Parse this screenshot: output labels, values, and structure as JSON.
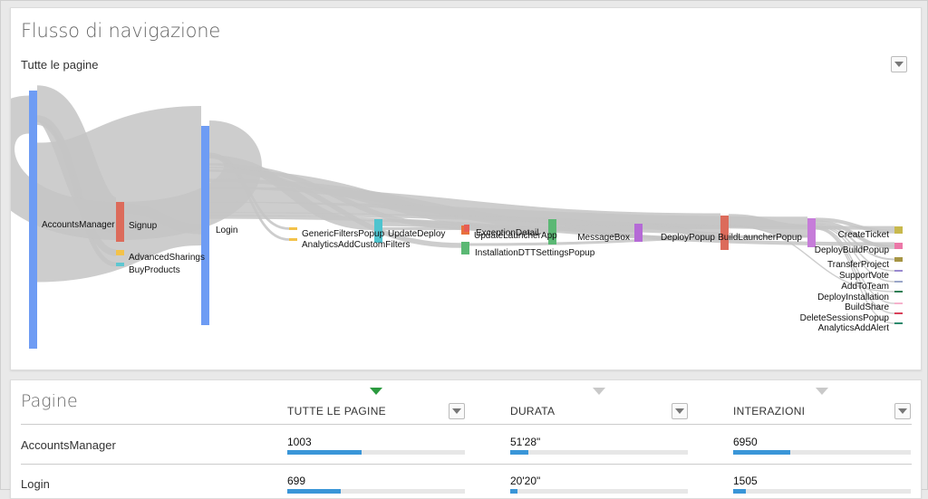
{
  "flow": {
    "title": "Flusso di navigazione",
    "filter_label": "Tutte le pagine",
    "nodes": [
      {
        "id": "AccountsManager",
        "label": "AccountsManager",
        "color": "#6e9cf4"
      },
      {
        "id": "Signup",
        "label": "Signup",
        "color": "#dc6b5b"
      },
      {
        "id": "AdvancedSharings",
        "label": "AdvancedSharings",
        "color": "#f3c24a"
      },
      {
        "id": "BuyProducts",
        "label": "BuyProducts",
        "color": "#5ec7d1"
      },
      {
        "id": "Login",
        "label": "Login",
        "color": "#6e9cf4"
      },
      {
        "id": "GenericFiltersPopup",
        "label": "GenericFiltersPopup",
        "color": "#f3c24a"
      },
      {
        "id": "AnalyticsAddCustomFilters",
        "label": "AnalyticsAddCustomFilters",
        "color": "#f3c24a"
      },
      {
        "id": "UpdateDeploy",
        "label": "UpdateDeploy",
        "color": "#4ec4cf"
      },
      {
        "id": "UpdateLauncherApp",
        "label": "UpdateLauncherApp",
        "color": "#e8713d"
      },
      {
        "id": "ExceptionDetail",
        "label": "ExceptionDetail",
        "color": "#e65d55"
      },
      {
        "id": "InstallationDTTSettingsPopup",
        "label": "InstallationDTTSettingsPopup",
        "color": "#5bb874"
      },
      {
        "id": "MessageBoxA",
        "label": "",
        "color": "#5bb874"
      },
      {
        "id": "MessageBox",
        "label": "MessageBox",
        "color": "#b56ad6"
      },
      {
        "id": "DeployPopup",
        "label": "DeployPopup",
        "color": "#dc6b5b"
      },
      {
        "id": "BuildLauncherPopup",
        "label": "BuildLauncherPopup",
        "color": "#c67cd9"
      },
      {
        "id": "CreateTicket",
        "label": "CreateTicket",
        "color": "#c8b94d"
      },
      {
        "id": "DeployBuildPopup",
        "label": "DeployBuildPopup",
        "color": "#ec78a8"
      },
      {
        "id": "TransferProject",
        "label": "TransferProject",
        "color": "#a69544"
      },
      {
        "id": "SupportVote",
        "label": "SupportVote",
        "color": "#9a8ad0"
      },
      {
        "id": "AddToTeam",
        "label": "AddToTeam",
        "color": "#9aa6c8"
      },
      {
        "id": "DeployInstallation",
        "label": "DeployInstallation",
        "color": "#2d7f55"
      },
      {
        "id": "BuildShare",
        "label": "BuildShare",
        "color": "#f6b2cc"
      },
      {
        "id": "DeleteSessionsPopup",
        "label": "DeleteSessionsPopup",
        "color": "#d9405a"
      },
      {
        "id": "AnalyticsAddAlert",
        "label": "AnalyticsAddAlert",
        "color": "#2a8a6d"
      }
    ],
    "links": [
      {
        "from": "AccountsManager",
        "to": "Signup",
        "value": 16
      },
      {
        "from": "AccountsManager",
        "to": "AdvancedSharings",
        "value": 3
      },
      {
        "from": "AccountsManager",
        "to": "BuyProducts",
        "value": 2
      },
      {
        "from": "AccountsManager",
        "to": "Login",
        "value": 110
      },
      {
        "from": "Signup",
        "to": "Login",
        "value": 8
      },
      {
        "from": "Login",
        "to": "AccountsManager",
        "value": 30
      },
      {
        "from": "Login",
        "to": "GenericFiltersPopup",
        "value": 2
      },
      {
        "from": "Login",
        "to": "AnalyticsAddCustomFilters",
        "value": 2
      },
      {
        "from": "Login",
        "to": "UpdateDeploy",
        "value": 8
      },
      {
        "from": "Login",
        "to": "ExceptionDetail",
        "value": 4
      },
      {
        "from": "Login",
        "to": "InstallationDTTSettingsPopup",
        "value": 4
      },
      {
        "from": "Login",
        "to": "MessageBoxA",
        "value": 10
      },
      {
        "from": "Login",
        "to": "MessageBox",
        "value": 8
      },
      {
        "from": "Login",
        "to": "DeployPopup",
        "value": 16
      },
      {
        "from": "Login",
        "to": "BuildLauncherPopup",
        "value": 12
      },
      {
        "from": "Login",
        "to": "CreateTicket",
        "value": 3
      },
      {
        "from": "Login",
        "to": "DeployBuildPopup",
        "value": 3
      },
      {
        "from": "UpdateDeploy",
        "to": "MessageBoxA",
        "value": 5
      },
      {
        "from": "UpdateDeploy",
        "to": "DeployPopup",
        "value": 3
      },
      {
        "from": "MessageBoxA",
        "to": "MessageBox",
        "value": 6
      },
      {
        "from": "MessageBoxA",
        "to": "DeployPopup",
        "value": 6
      },
      {
        "from": "MessageBox",
        "to": "DeployPopup",
        "value": 6
      },
      {
        "from": "DeployPopup",
        "to": "BuildLauncherPopup",
        "value": 14
      },
      {
        "from": "DeployPopup",
        "to": "DeployInstallation",
        "value": 1
      },
      {
        "from": "BuildLauncherPopup",
        "to": "CreateTicket",
        "value": 4
      },
      {
        "from": "BuildLauncherPopup",
        "to": "DeployBuildPopup",
        "value": 4
      },
      {
        "from": "BuildLauncherPopup",
        "to": "TransferProject",
        "value": 2
      },
      {
        "from": "BuildLauncherPopup",
        "to": "SupportVote",
        "value": 1
      },
      {
        "from": "BuildLauncherPopup",
        "to": "AddToTeam",
        "value": 1
      },
      {
        "from": "BuildLauncherPopup",
        "to": "BuildShare",
        "value": 1
      },
      {
        "from": "BuildLauncherPopup",
        "to": "DeleteSessionsPopup",
        "value": 1
      },
      {
        "from": "BuildLauncherPopup",
        "to": "AnalyticsAddAlert",
        "value": 1
      },
      {
        "from": "InstallationDTTSettingsPopup",
        "to": "BuildLauncherPopup",
        "value": 3
      },
      {
        "from": "ExceptionDetail",
        "to": "DeployPopup",
        "value": 3
      }
    ]
  },
  "pages": {
    "title": "Pagine",
    "columns": [
      {
        "label": "TUTTE LE PAGINE",
        "sorted": true
      },
      {
        "label": "DURATA",
        "sorted": false
      },
      {
        "label": "INTERAZIONI",
        "sorted": false
      }
    ],
    "rows": [
      {
        "name": "AccountsManager",
        "all": "1003",
        "all_fraction": 0.42,
        "duration": "51'28\"",
        "duration_fraction": 0.1,
        "interactions": "6950",
        "interactions_fraction": 0.32
      },
      {
        "name": "Login",
        "all": "699",
        "all_fraction": 0.3,
        "duration": "20'20\"",
        "duration_fraction": 0.04,
        "interactions": "1505",
        "interactions_fraction": 0.07
      }
    ]
  }
}
